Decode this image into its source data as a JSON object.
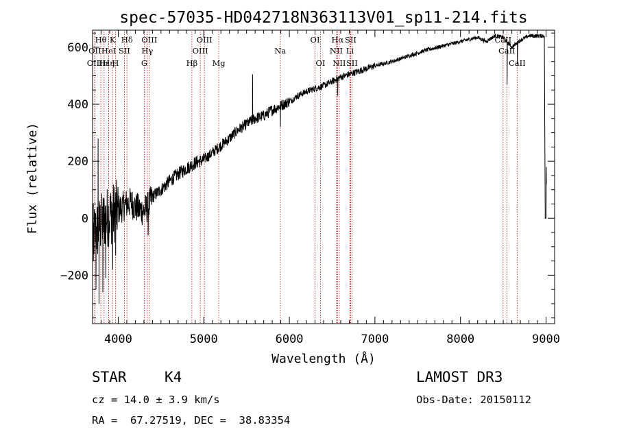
{
  "chart_data": {
    "type": "line",
    "title": "spec-57035-HD042718N363113V01_sp11-214.fits",
    "xlabel": "Wavelength (Å)",
    "ylabel": "Flux (relative)",
    "xlim": [
      3700,
      9100
    ],
    "ylim": [
      -370,
      660
    ],
    "xticks": [
      4000,
      5000,
      6000,
      7000,
      8000,
      9000
    ],
    "yticks": [
      -200,
      0,
      200,
      400,
      600
    ],
    "line_color": "#000000",
    "marker_color": "#c80000",
    "series": [
      {
        "name": "spectrum",
        "anchors": {
          "x": [
            3700,
            3760,
            3800,
            3850,
            3900,
            3950,
            4000,
            4050,
            4100,
            4150,
            4200,
            4250,
            4300,
            4350,
            4400,
            4500,
            4600,
            4700,
            4800,
            4900,
            5000,
            5100,
            5200,
            5300,
            5400,
            5500,
            5600,
            5700,
            5800,
            5900,
            6000,
            6100,
            6200,
            6300,
            6400,
            6500,
            6600,
            6700,
            6800,
            6900,
            7000,
            7200,
            7400,
            7600,
            7800,
            8000,
            8200,
            8300,
            8400,
            8500,
            8600,
            8700,
            8800,
            8900,
            8980
          ],
          "y": [
            -60,
            -40,
            -20,
            0,
            10,
            20,
            30,
            40,
            50,
            55,
            40,
            30,
            25,
            40,
            75,
            100,
            130,
            155,
            175,
            195,
            205,
            230,
            255,
            280,
            310,
            330,
            350,
            360,
            380,
            395,
            410,
            430,
            445,
            455,
            465,
            480,
            495,
            505,
            515,
            525,
            535,
            550,
            570,
            590,
            605,
            620,
            635,
            620,
            640,
            635,
            600,
            625,
            640,
            640,
            640
          ]
        },
        "features": [
          {
            "x": 3710,
            "y": -150
          },
          {
            "x": 3740,
            "y": -250
          },
          {
            "x": 3765,
            "y": 280
          },
          {
            "x": 3775,
            "y": -300
          },
          {
            "x": 3820,
            "y": -260
          },
          {
            "x": 3855,
            "y": -210
          },
          {
            "x": 3935,
            "y": -180
          },
          {
            "x": 3970,
            "y": -130
          },
          {
            "x": 4350,
            "y": -60
          },
          {
            "x": 5570,
            "y": 505
          },
          {
            "x": 5895,
            "y": 320
          },
          {
            "x": 6565,
            "y": 430
          },
          {
            "x": 8545,
            "y": 470
          },
          {
            "x": 8665,
            "y": 540
          },
          {
            "x": 8990,
            "y": 0
          },
          {
            "x": 9000,
            "y": 0
          },
          {
            "x": 9003,
            "y": 180
          },
          {
            "x": 9005,
            "y": 120
          }
        ]
      }
    ],
    "line_markers": [
      {
        "label": "Hθ",
        "x": 3797,
        "row": 1
      },
      {
        "label": "OII",
        "x": 3727,
        "row": 2
      },
      {
        "label": "OIII",
        "x": 3726,
        "row": 3
      },
      {
        "label": "Hε",
        "x": 3835,
        "row": 3
      },
      {
        "label": "K",
        "x": 3934,
        "row": 1
      },
      {
        "label": "HeI",
        "x": 3889,
        "row": 2
      },
      {
        "label": "Hη",
        "x": 3889,
        "row": 3
      },
      {
        "label": "H",
        "x": 3968,
        "row": 3
      },
      {
        "label": "SII",
        "x": 4072,
        "row": 2
      },
      {
        "label": "Hδ",
        "x": 4102,
        "row": 1
      },
      {
        "label": "OIII",
        "x": 4363,
        "row": 1
      },
      {
        "label": "Hγ",
        "x": 4340,
        "row": 2
      },
      {
        "label": "G",
        "x": 4305,
        "row": 3
      },
      {
        "label": "OIII",
        "x": 5007,
        "row": 1
      },
      {
        "label": "OIII",
        "x": 4959,
        "row": 2
      },
      {
        "label": "Hβ",
        "x": 4861,
        "row": 3
      },
      {
        "label": "Mg",
        "x": 5175,
        "row": 3
      },
      {
        "label": "Na",
        "x": 5893,
        "row": 2
      },
      {
        "label": "OI",
        "x": 6300,
        "row": 1
      },
      {
        "label": "OI",
        "x": 6364,
        "row": 3
      },
      {
        "label": "Hα",
        "x": 6563,
        "row": 1
      },
      {
        "label": "NII",
        "x": 6548,
        "row": 2
      },
      {
        "label": "NII",
        "x": 6583,
        "row": 3
      },
      {
        "label": "SII",
        "x": 6716,
        "row": 1
      },
      {
        "label": "Li",
        "x": 6708,
        "row": 2
      },
      {
        "label": "SII",
        "x": 6731,
        "row": 3
      },
      {
        "label": "CaII",
        "x": 8498,
        "row": 1
      },
      {
        "label": "CaII",
        "x": 8542,
        "row": 2
      },
      {
        "label": "CaII",
        "x": 8662,
        "row": 3
      }
    ]
  },
  "info": {
    "object_class": "STAR",
    "subclass": "K4",
    "survey": "LAMOST DR3",
    "cz": "cz = 14.0 ± 3.9 km/s",
    "obs_date": "Obs-Date: 20150112",
    "coords": "RA =  67.27519, DEC =  38.83354"
  }
}
